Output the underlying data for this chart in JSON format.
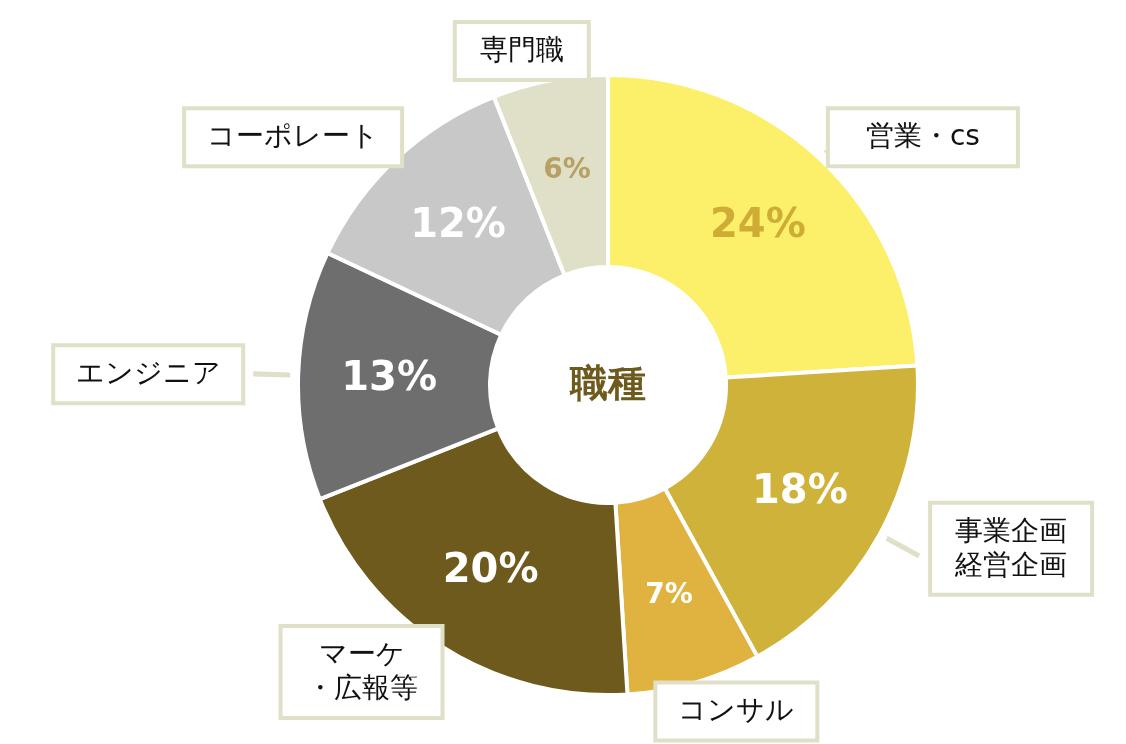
{
  "chart_data": {
    "type": "donut",
    "title": "職種",
    "categories": [
      "営業・cs",
      "事業企画経営企画",
      "コンサル",
      "マーケ・広報等",
      "エンジニア",
      "コーポレート",
      "専門職"
    ],
    "values": [
      24,
      18,
      7,
      20,
      13,
      12,
      6
    ],
    "colors": [
      "#fcef6a",
      "#cfb23a",
      "#e0b240",
      "#6e5a1d",
      "#6e6e6e",
      "#c8c8c8",
      "#e0dfc8"
    ],
    "value_labels": [
      "24%",
      "18%",
      "7%",
      "20%",
      "13%",
      "12%",
      "6%"
    ]
  }
}
